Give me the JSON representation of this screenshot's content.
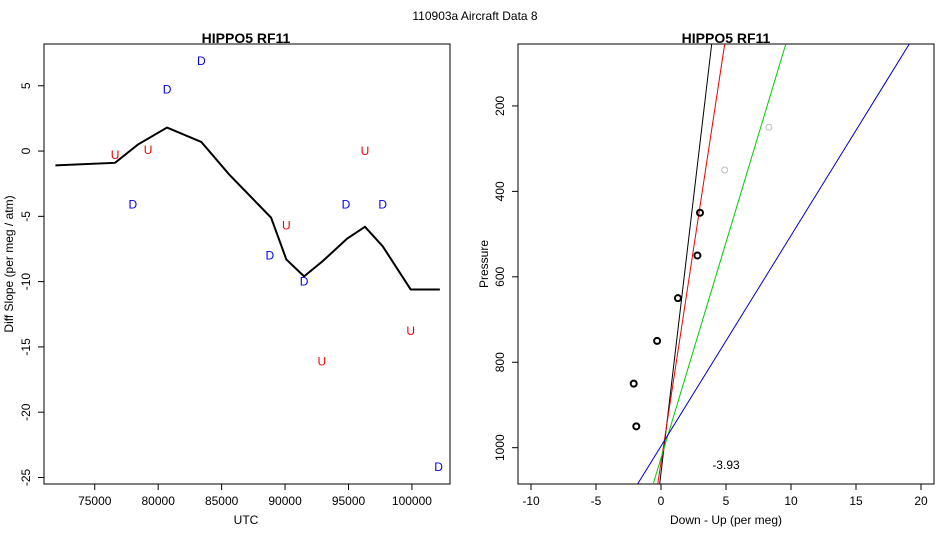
{
  "super_title": "110903a    Aircraft Data 8",
  "chart_data": [
    {
      "type": "line",
      "title": "HIPPO5 RF11",
      "xlabel": "UTC",
      "ylabel": "Diff Slope (per meg / atm)",
      "xlim": [
        71000,
        103000
      ],
      "ylim": [
        -25.5,
        8.2
      ],
      "xticks": [
        75000,
        80000,
        85000,
        90000,
        95000,
        100000
      ],
      "yticks": [
        -25,
        -20,
        -15,
        -10,
        -5,
        0,
        5
      ],
      "grid": false,
      "line_color": "#000000",
      "line": {
        "x": [
          71900,
          76600,
          78400,
          80700,
          83400,
          85600,
          88900,
          90100,
          91500,
          93000,
          94900,
          96300,
          97700,
          99900,
          102200
        ],
        "y": [
          -1.1,
          -0.9,
          0.5,
          1.8,
          0.7,
          -1.8,
          -5.1,
          -8.3,
          -9.6,
          -8.4,
          -6.7,
          -5.8,
          -7.3,
          -10.6,
          -10.6
        ]
      },
      "markers": [
        {
          "label": "U",
          "x": 76600,
          "y": -0.3,
          "color": "#ee0000"
        },
        {
          "label": "U",
          "x": 79200,
          "y": 0.1,
          "color": "#ee0000"
        },
        {
          "label": "D",
          "x": 78000,
          "y": -4.1,
          "color": "#0000ee"
        },
        {
          "label": "D",
          "x": 80700,
          "y": 4.7,
          "color": "#0000ee"
        },
        {
          "label": "D",
          "x": 83400,
          "y": 6.9,
          "color": "#0000ee"
        },
        {
          "label": "D",
          "x": 88800,
          "y": -8.0,
          "color": "#0000ee"
        },
        {
          "label": "U",
          "x": 90100,
          "y": -5.7,
          "color": "#ee0000"
        },
        {
          "label": "D",
          "x": 91500,
          "y": -10.0,
          "color": "#0000ee"
        },
        {
          "label": "U",
          "x": 92900,
          "y": -16.1,
          "color": "#ee0000"
        },
        {
          "label": "D",
          "x": 94800,
          "y": -4.1,
          "color": "#0000ee"
        },
        {
          "label": "U",
          "x": 96300,
          "y": 0.0,
          "color": "#ee0000"
        },
        {
          "label": "D",
          "x": 97700,
          "y": -4.1,
          "color": "#0000ee"
        },
        {
          "label": "U",
          "x": 99900,
          "y": -13.8,
          "color": "#ee0000"
        },
        {
          "label": "D",
          "x": 102100,
          "y": -24.2,
          "color": "#0000ee"
        }
      ]
    },
    {
      "type": "scatter",
      "title": "HIPPO5 RF11",
      "xlabel": "Down - Up (per meg)",
      "ylabel": "Pressure",
      "xlim": [
        -11,
        21
      ],
      "ylim": [
        1085,
        55
      ],
      "y_reversed": true,
      "xticks": [
        -10,
        -5,
        0,
        5,
        10,
        15,
        20
      ],
      "yticks": [
        200,
        400,
        600,
        800,
        1000
      ],
      "grid": false,
      "points": [
        {
          "x": 8.3,
          "y": 250,
          "color": "#bbbbbb"
        },
        {
          "x": 4.9,
          "y": 350,
          "color": "#bbbbbb"
        },
        {
          "x": 3.0,
          "y": 450,
          "color": "#000000"
        },
        {
          "x": 2.8,
          "y": 550,
          "color": "#000000"
        },
        {
          "x": 1.3,
          "y": 650,
          "color": "#000000"
        },
        {
          "x": -0.3,
          "y": 750,
          "color": "#000000"
        },
        {
          "x": -2.1,
          "y": 850,
          "color": "#000000"
        },
        {
          "x": -1.9,
          "y": 950,
          "color": "#000000"
        }
      ],
      "lines": [
        {
          "color": "#000000",
          "x": [
            -0.1,
            3.9
          ],
          "y": [
            1085,
            55
          ]
        },
        {
          "color": "#ee0000",
          "x": [
            -0.25,
            4.9
          ],
          "y": [
            1085,
            55
          ]
        },
        {
          "color": "#00cc00",
          "x": [
            -0.6,
            9.6
          ],
          "y": [
            1085,
            55
          ]
        },
        {
          "color": "#0000cc",
          "x": [
            -1.8,
            19.1
          ],
          "y": [
            1085,
            55
          ]
        }
      ],
      "annotation": {
        "text": "-3.93",
        "x": 5.0,
        "y": 1040
      }
    }
  ]
}
